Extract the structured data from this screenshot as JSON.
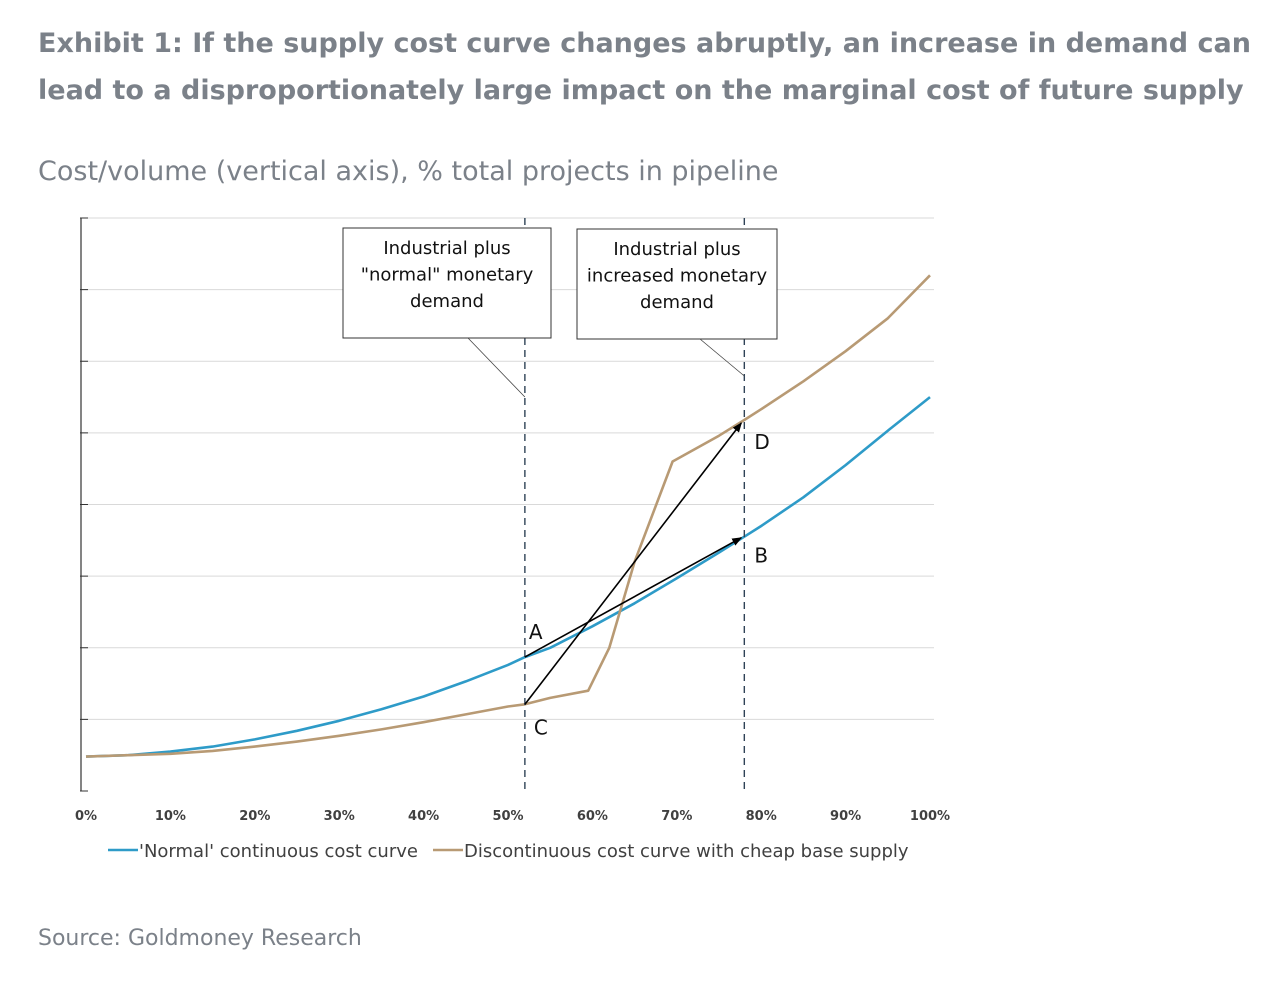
{
  "header": {
    "title": "Exhibit 1: If the supply cost curve changes abruptly, an increase in demand can lead to a disproportionately large impact on the marginal cost of future supply",
    "subtitle": "Cost/volume (vertical axis), % total projects in pipeline"
  },
  "footer": {
    "source": "Source: Goldmoney Research"
  },
  "chart_data": {
    "type": "line",
    "title": "",
    "xlabel": "",
    "ylabel": "",
    "xlim": [
      0,
      100
    ],
    "ylim": [
      0,
      8
    ],
    "grid": true,
    "legend_position": "bottom",
    "x_ticks": [
      "0%",
      "10%",
      "20%",
      "30%",
      "40%",
      "50%",
      "60%",
      "70%",
      "80%",
      "90%",
      "100%"
    ],
    "series": [
      {
        "name": "'Normal' continuous cost curve",
        "color": "#2e9bc8",
        "x": [
          0,
          5,
          10,
          15,
          20,
          25,
          30,
          35,
          40,
          45,
          50,
          52,
          55,
          60,
          65,
          70,
          75,
          78,
          80,
          85,
          90,
          95,
          100
        ],
        "y": [
          0.48,
          0.5,
          0.55,
          0.62,
          0.72,
          0.84,
          0.98,
          1.14,
          1.32,
          1.53,
          1.76,
          1.87,
          2.0,
          2.3,
          2.62,
          2.97,
          3.33,
          3.55,
          3.7,
          4.1,
          4.55,
          5.03,
          5.5
        ]
      },
      {
        "name": "Discontinuous cost curve with cheap base supply",
        "color": "#b89a74",
        "x": [
          0,
          5,
          10,
          15,
          20,
          25,
          30,
          35,
          40,
          45,
          50,
          52,
          55,
          59.5,
          62,
          65,
          69.5,
          75,
          78,
          80,
          85,
          90,
          95,
          100
        ],
        "y": [
          0.48,
          0.5,
          0.52,
          0.56,
          0.62,
          0.69,
          0.77,
          0.86,
          0.96,
          1.07,
          1.18,
          1.21,
          1.3,
          1.4,
          2.0,
          3.2,
          4.6,
          4.96,
          5.18,
          5.33,
          5.72,
          6.14,
          6.6,
          7.2
        ]
      }
    ],
    "vlines": [
      {
        "x": 52,
        "label": "Industrial plus \"normal\" monetary demand",
        "label_lines": [
          "Industrial plus",
          "\"normal\" monetary",
          "demand"
        ]
      },
      {
        "x": 78,
        "label": "Industrial plus increased monetary demand",
        "label_lines": [
          "Industrial plus",
          "increased monetary",
          "demand"
        ]
      }
    ],
    "points": [
      {
        "label": "A",
        "x": 52,
        "y": 1.87
      },
      {
        "label": "B",
        "x": 78,
        "y": 3.55
      },
      {
        "label": "C",
        "x": 52,
        "y": 1.21
      },
      {
        "label": "D",
        "x": 78,
        "y": 5.18
      }
    ],
    "arrows": [
      {
        "from": "A",
        "to": "B"
      },
      {
        "from": "C",
        "to": "D"
      }
    ]
  }
}
